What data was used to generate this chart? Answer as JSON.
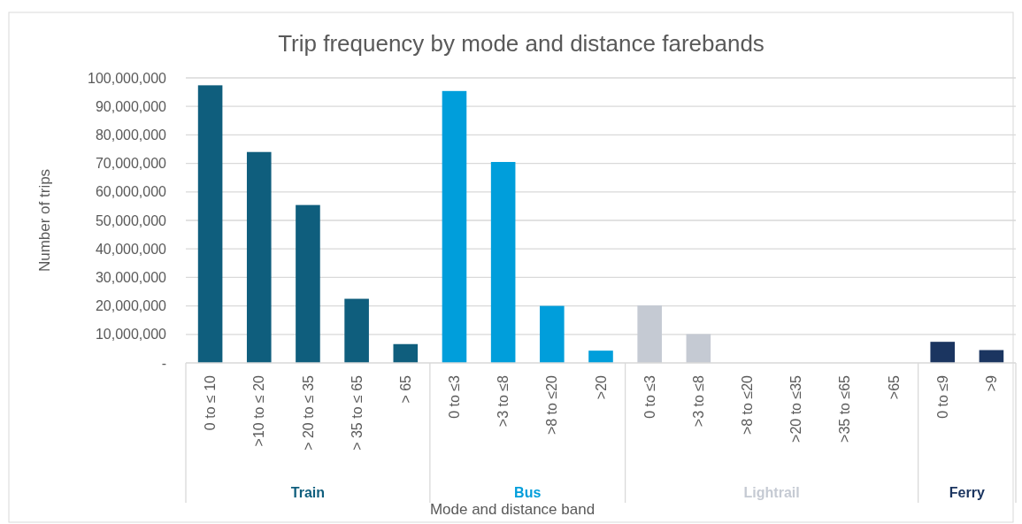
{
  "chart_data": {
    "type": "bar",
    "title": "Trip frequency by mode and distance farebands",
    "xlabel": "Mode and distance band",
    "ylabel": "Number  of trips",
    "categories": [
      "0 to ≤ 10",
      ">10 to ≤ 20",
      "> 20 to ≤ 35",
      "> 35 to ≤ 65",
      "> 65",
      "0 to ≤3",
      ">3 to ≤8",
      ">8 to ≤20",
      ">20",
      "0 to ≤3",
      ">3 to ≤8",
      ">8 to ≤20",
      ">20 to ≤35",
      ">35 to ≤65",
      ">65",
      "0 to ≤9",
      ">9"
    ],
    "series": [
      {
        "name": "Train",
        "color": "#0f5e7d",
        "values": [
          97400000,
          74000000,
          55400000,
          22500000,
          6600000,
          null,
          null,
          null,
          null,
          null,
          null,
          null,
          null,
          null,
          null,
          null,
          null
        ]
      },
      {
        "name": "Bus",
        "color": "#009edb",
        "values": [
          null,
          null,
          null,
          null,
          null,
          95400000,
          70500000,
          20000000,
          4300000,
          null,
          null,
          null,
          null,
          null,
          null,
          null,
          null
        ]
      },
      {
        "name": "Lightrail",
        "color": "#c5cad3",
        "values": [
          null,
          null,
          null,
          null,
          null,
          null,
          null,
          null,
          null,
          20200000,
          10100000,
          0,
          0,
          0,
          0,
          null,
          null
        ]
      },
      {
        "name": "Ferry",
        "color": "#1b3560",
        "values": [
          null,
          null,
          null,
          null,
          null,
          null,
          null,
          null,
          null,
          null,
          null,
          null,
          null,
          null,
          null,
          7400000,
          4500000
        ]
      }
    ],
    "ylim": [
      0,
      100000000
    ],
    "yticks": [
      {
        "value": 0,
        "label": "-"
      },
      {
        "value": 10000000,
        "label": "10,000,000"
      },
      {
        "value": 20000000,
        "label": "20,000,000"
      },
      {
        "value": 30000000,
        "label": "30,000,000"
      },
      {
        "value": 40000000,
        "label": "40,000,000"
      },
      {
        "value": 50000000,
        "label": "50,000,000"
      },
      {
        "value": 60000000,
        "label": "60,000,000"
      },
      {
        "value": 70000000,
        "label": "70,000,000"
      },
      {
        "value": 80000000,
        "label": "80,000,000"
      },
      {
        "value": 90000000,
        "label": "90,000,000"
      },
      {
        "value": 100000000,
        "label": "100,000,000"
      }
    ],
    "grid": "y"
  }
}
